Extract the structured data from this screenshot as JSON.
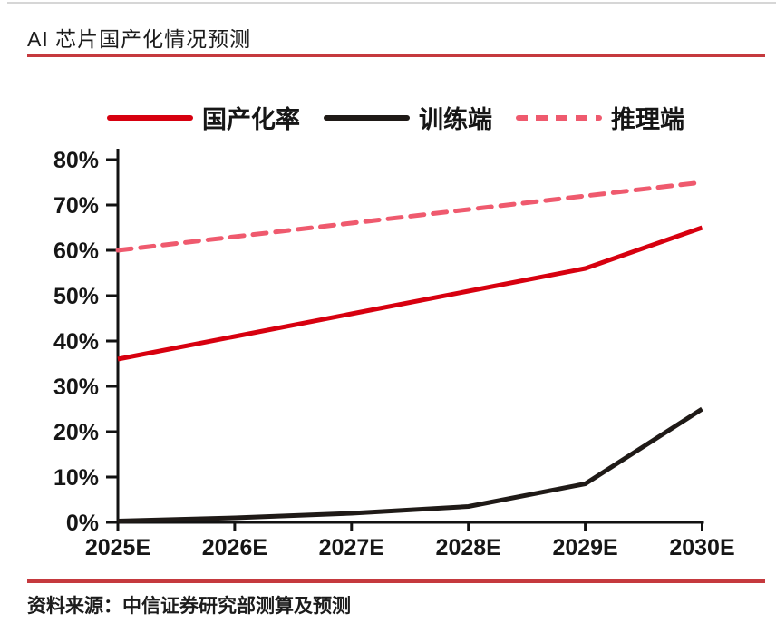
{
  "header": {
    "title": "AI 芯片国产化情况预测"
  },
  "chart_data": {
    "type": "line",
    "title": "AI 芯片国产化情况预测",
    "categories": [
      "2025E",
      "2026E",
      "2027E",
      "2028E",
      "2029E",
      "2030E"
    ],
    "series": [
      {
        "name": "国产化率",
        "color": "#d7000f",
        "style": "solid",
        "values": [
          36,
          41,
          46,
          51,
          56,
          65
        ]
      },
      {
        "name": "训练端",
        "color": "#1f1a17",
        "style": "solid",
        "values": [
          0.3,
          1,
          2,
          3.5,
          8.5,
          25
        ]
      },
      {
        "name": "推理端",
        "color": "#ef5a6e",
        "style": "dashed",
        "values": [
          60,
          63,
          66,
          69,
          72,
          75
        ]
      }
    ],
    "xlabel": "",
    "ylabel": "",
    "ylim": [
      0,
      80
    ],
    "ytick_step": 10,
    "ytick_labels": [
      "0%",
      "10%",
      "20%",
      "30%",
      "40%",
      "50%",
      "60%",
      "70%",
      "80%"
    ],
    "grid": false,
    "legend_position": "top"
  },
  "footer": {
    "source": "资料来源：中信证券研究部测算及预测"
  },
  "colors": {
    "rule_red": "#c5393e",
    "line_red": "#d7000f",
    "line_black": "#1f1a17",
    "line_pink": "#ef5a6e",
    "text": "#161616"
  }
}
